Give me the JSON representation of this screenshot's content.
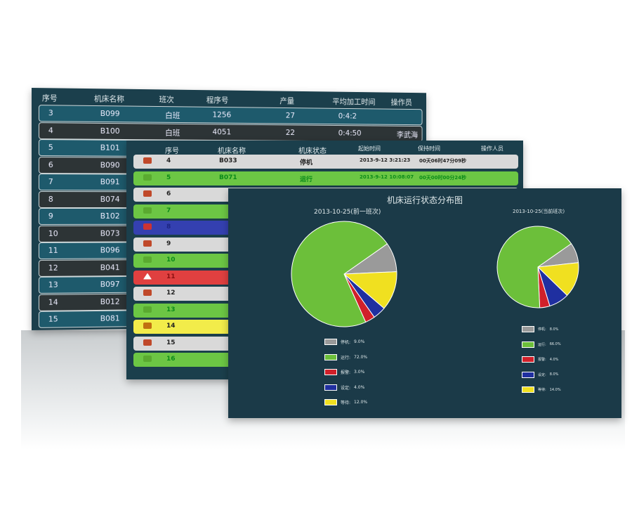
{
  "panel1": {
    "headers": [
      "序号",
      "机床名称",
      "班次",
      "程序号",
      "产量",
      "平均加工时间",
      "操作员"
    ],
    "rows": [
      [
        "3",
        "B099",
        "白班",
        "1256",
        "27",
        "0:4:2",
        ""
      ],
      [
        "4",
        "B100",
        "白班",
        "4051",
        "22",
        "0:4:50",
        "李武海"
      ],
      [
        "5",
        "B101"
      ],
      [
        "6",
        "B090"
      ],
      [
        "7",
        "B091"
      ],
      [
        "8",
        "B074"
      ],
      [
        "9",
        "B102"
      ],
      [
        "10",
        "B073"
      ],
      [
        "11",
        "B096"
      ],
      [
        "12",
        "B041"
      ],
      [
        "13",
        "B097"
      ],
      [
        "14",
        "B012"
      ],
      [
        "15",
        "B081"
      ]
    ]
  },
  "panel2": {
    "headers": [
      "序号",
      "机床名称",
      "机床状态",
      "起始时间",
      "保持时间",
      "操作人员"
    ],
    "rows": [
      {
        "no": "4",
        "name": "B033",
        "status": "停机",
        "start": "2013-9-12 3:21:23",
        "hold": "00天06时47分09秒",
        "color": "#d9d9d9",
        "text": "#222",
        "icon": "stop-icon"
      },
      {
        "no": "5",
        "name": "B071",
        "status": "运行",
        "start": "2013-9-12 10:08:07",
        "hold": "00天00时00分24秒",
        "color": "#6cc644",
        "text": "#0b8a1a",
        "icon": "play-icon"
      },
      {
        "no": "6",
        "color": "#d9d9d9",
        "text": "#222",
        "icon": "stop-icon"
      },
      {
        "no": "7",
        "color": "#6cc644",
        "text": "#0b8a1a",
        "icon": "play-icon"
      },
      {
        "no": "8",
        "color": "#3440b0",
        "text": "#1c2580",
        "icon": "setup-icon"
      },
      {
        "no": "9",
        "color": "#d9d9d9",
        "text": "#222",
        "icon": "stop-icon"
      },
      {
        "no": "10",
        "color": "#6cc644",
        "text": "#0b8a1a",
        "icon": "play-icon"
      },
      {
        "no": "11",
        "color": "#e04040",
        "text": "#8a1010",
        "icon": "alarm-icon"
      },
      {
        "no": "12",
        "color": "#d9d9d9",
        "text": "#222",
        "icon": "stop-icon"
      },
      {
        "no": "13",
        "color": "#6cc644",
        "text": "#0b8a1a",
        "icon": "play-icon"
      },
      {
        "no": "14",
        "color": "#f2ec4a",
        "text": "#222",
        "icon": "pause-icon"
      },
      {
        "no": "15",
        "color": "#d9d9d9",
        "text": "#222",
        "icon": "stop-icon"
      },
      {
        "no": "16",
        "color": "#6cc644",
        "text": "#0b8a1a",
        "icon": "play-icon"
      }
    ]
  },
  "panel3": {
    "title": "机床运行状态分布图",
    "pies": [
      {
        "subtitle": "2013-10-25(前一班次)",
        "items": [
          {
            "label": "停机:",
            "value": 9,
            "text": "9.0%",
            "color": "#9a9a9a"
          },
          {
            "label": "运行:",
            "value": 72,
            "text": "72.0%",
            "color": "#6cbf3a"
          },
          {
            "label": "报警:",
            "value": 3,
            "text": "3.0%",
            "color": "#d0202a"
          },
          {
            "label": "设定:",
            "value": 4,
            "text": "4.0%",
            "color": "#1f2fa0"
          },
          {
            "label": "等待:",
            "value": 12,
            "text": "12.0%",
            "color": "#f0e020"
          }
        ]
      },
      {
        "subtitle": "2013-10-25(当前班次)",
        "items": [
          {
            "label": "停机:",
            "value": 8,
            "text": "8.0%",
            "color": "#9a9a9a"
          },
          {
            "label": "运行:",
            "value": 66,
            "text": "66.0%",
            "color": "#6cbf3a"
          },
          {
            "label": "报警:",
            "value": 4,
            "text": "4.0%",
            "color": "#d0202a"
          },
          {
            "label": "设定:",
            "value": 8,
            "text": "8.0%",
            "color": "#1f2fa0"
          },
          {
            "label": "等待:",
            "value": 14,
            "text": "14.0%",
            "color": "#f0e020"
          }
        ]
      }
    ]
  }
}
